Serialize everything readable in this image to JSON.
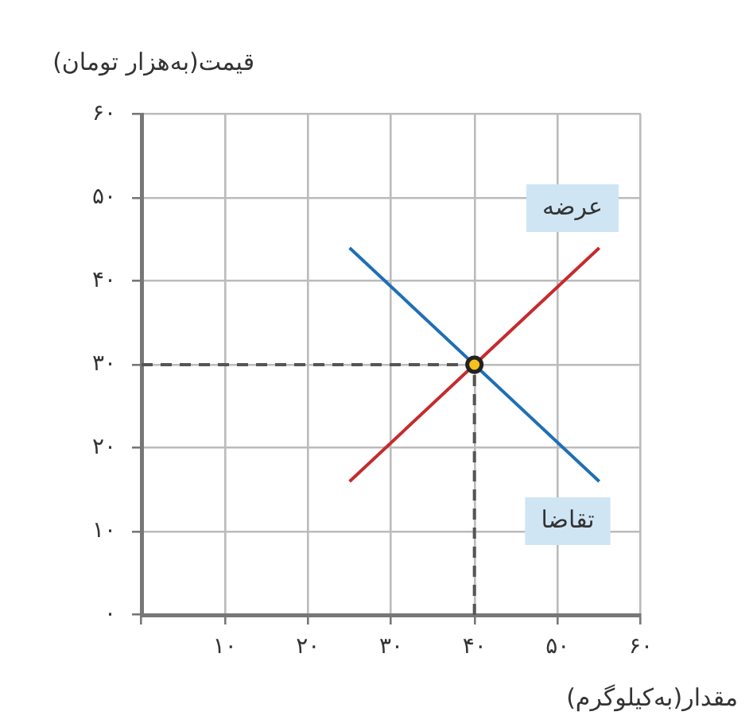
{
  "chart_data": {
    "type": "line",
    "xlabel": "مقدار(به‌کیلوگرم)",
    "ylabel": "قیمت(به‌هزار تومان)",
    "xlim": [
      0,
      60
    ],
    "ylim": [
      0,
      60
    ],
    "xticks": [
      {
        "value": 0,
        "label": null
      },
      {
        "value": 10,
        "label": "۱۰"
      },
      {
        "value": 20,
        "label": "۲۰"
      },
      {
        "value": 30,
        "label": "۳۰"
      },
      {
        "value": 40,
        "label": "۴۰"
      },
      {
        "value": 50,
        "label": "۵۰"
      },
      {
        "value": 60,
        "label": "۶۰"
      }
    ],
    "yticks": [
      {
        "value": 0,
        "label": "۰"
      },
      {
        "value": 10,
        "label": "۱۰"
      },
      {
        "value": 20,
        "label": "۲۰"
      },
      {
        "value": 30,
        "label": "۳۰"
      },
      {
        "value": 40,
        "label": "۴۰"
      },
      {
        "value": 50,
        "label": "۵۰"
      },
      {
        "value": 60,
        "label": "۶۰"
      }
    ],
    "grid": true,
    "marker": "none",
    "series": [
      {
        "color": "#1f6fb5",
        "x": [
          25,
          40,
          55
        ],
        "values": [
          44,
          30,
          16
        ]
      },
      {
        "color": "#c62b2d",
        "x": [
          25,
          40,
          55
        ],
        "values": [
          16,
          30,
          44
        ]
      },
      {
        "type": "line",
        "color": "#555555",
        "line_style": "dashed",
        "x": [
          0,
          40
        ],
        "values": [
          30,
          30
        ]
      },
      {
        "type": "line",
        "color": "#555555",
        "line_style": "dashed",
        "x": [
          40,
          40
        ],
        "values": [
          0,
          30
        ]
      },
      {
        "type": "scatter",
        "color": "#f5c21b",
        "marker": "circle",
        "x": [
          40
        ],
        "values": [
          30
        ]
      }
    ],
    "annotations": [
      "عرضه",
      "تقاضا"
    ]
  }
}
